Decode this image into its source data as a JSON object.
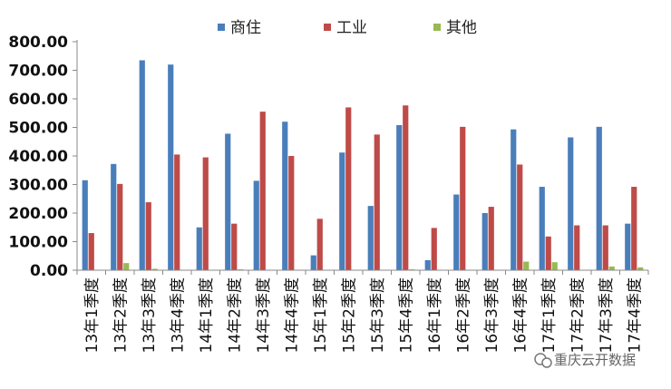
{
  "chart_data": {
    "type": "bar",
    "categories": [
      "13年1季度",
      "13年2季度",
      "13年3季度",
      "13年4季度",
      "14年1季度",
      "14年2季度",
      "14年3季度",
      "14年4季度",
      "15年1季度",
      "15年2季度",
      "15年3季度",
      "15年4季度",
      "16年1季度",
      "16年2季度",
      "16年3季度",
      "16年4季度",
      "17年1季度",
      "17年2季度",
      "17年3季度",
      "17年4季度"
    ],
    "series": [
      {
        "name": "商住",
        "color": "#4a7ebb",
        "values": [
          315,
          372,
          735,
          720,
          150,
          478,
          313,
          520,
          52,
          412,
          225,
          508,
          35,
          265,
          200,
          493,
          292,
          465,
          502,
          163
        ]
      },
      {
        "name": "工业",
        "color": "#be4b48",
        "values": [
          130,
          302,
          238,
          405,
          395,
          163,
          555,
          400,
          180,
          570,
          475,
          577,
          148,
          502,
          222,
          370,
          118,
          157,
          157,
          292
        ]
      },
      {
        "name": "其他",
        "color": "#98b954",
        "values": [
          0,
          25,
          5,
          0,
          0,
          3,
          0,
          0,
          0,
          0,
          0,
          3,
          0,
          0,
          0,
          30,
          28,
          0,
          13,
          10
        ]
      }
    ],
    "ylim": [
      0,
      800
    ],
    "yticks": [
      "0.00",
      "100.00",
      "200.00",
      "300.00",
      "400.00",
      "500.00",
      "600.00",
      "700.00",
      "800.00"
    ],
    "legend_position": "top",
    "grid": false
  },
  "watermark": {
    "text": "重庆云开数据",
    "icon": "wechat-icon"
  }
}
